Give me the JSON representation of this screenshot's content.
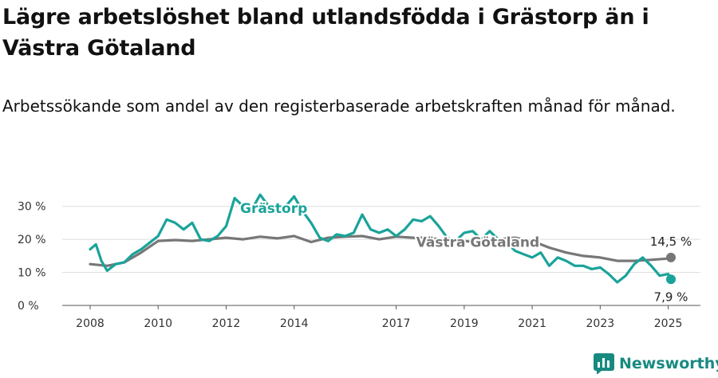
{
  "title": "Lägre arbetslöshet bland utlandsfödda i Grästorp än i Västra Götaland",
  "subtitle": "Arbetssökande som andel av den registerbaserade arbetskraften månad för månad.",
  "brand": {
    "name": "Newsworthy"
  },
  "chart_data": {
    "type": "line",
    "ylim": [
      0,
      35
    ],
    "xlim": [
      2007.5,
      2025.75
    ],
    "grid": true,
    "y_ticks": [
      {
        "value": 0,
        "label": "0 %"
      },
      {
        "value": 10,
        "label": "10 %"
      },
      {
        "value": 20,
        "label": "20 %"
      },
      {
        "value": 30,
        "label": "30 %"
      }
    ],
    "x_ticks": [
      {
        "value": 2008,
        "label": "2008"
      },
      {
        "value": 2010,
        "label": "2010"
      },
      {
        "value": 2012,
        "label": "2012"
      },
      {
        "value": 2014,
        "label": "2014"
      },
      {
        "value": 2017,
        "label": "2017"
      },
      {
        "value": 2019,
        "label": "2019"
      },
      {
        "value": 2021,
        "label": "2021"
      },
      {
        "value": 2023,
        "label": "2023"
      },
      {
        "value": 2025,
        "label": "2025"
      }
    ],
    "series": [
      {
        "name": "Västra Götaland",
        "color": "#777777",
        "end_label": "14,5 %",
        "points": [
          [
            2008.0,
            12.5
          ],
          [
            2008.5,
            12.0
          ],
          [
            2009.0,
            13.0
          ],
          [
            2009.5,
            16.0
          ],
          [
            2010.0,
            19.5
          ],
          [
            2010.5,
            19.8
          ],
          [
            2011.0,
            19.5
          ],
          [
            2011.5,
            20.0
          ],
          [
            2012.0,
            20.5
          ],
          [
            2012.5,
            20.0
          ],
          [
            2013.0,
            20.8
          ],
          [
            2013.5,
            20.3
          ],
          [
            2014.0,
            21.0
          ],
          [
            2014.5,
            19.2
          ],
          [
            2015.0,
            20.5
          ],
          [
            2015.5,
            20.8
          ],
          [
            2016.0,
            21.0
          ],
          [
            2016.5,
            20.0
          ],
          [
            2017.0,
            20.8
          ],
          [
            2017.5,
            20.5
          ],
          [
            2018.0,
            20.5
          ],
          [
            2018.5,
            19.5
          ],
          [
            2019.0,
            19.5
          ],
          [
            2019.5,
            19.0
          ],
          [
            2020.0,
            20.0
          ],
          [
            2020.5,
            20.5
          ],
          [
            2021.0,
            19.5
          ],
          [
            2021.5,
            17.5
          ],
          [
            2022.0,
            16.0
          ],
          [
            2022.5,
            15.0
          ],
          [
            2023.0,
            14.5
          ],
          [
            2023.5,
            13.5
          ],
          [
            2024.0,
            13.5
          ],
          [
            2024.5,
            13.8
          ],
          [
            2025.0,
            14.2
          ],
          [
            2025.08,
            14.5
          ]
        ]
      },
      {
        "name": "Grästorp",
        "color": "#1aa39a",
        "end_label": "7,9 %",
        "points": [
          [
            2008.0,
            17.0
          ],
          [
            2008.17,
            18.5
          ],
          [
            2008.33,
            13.5
          ],
          [
            2008.5,
            10.5
          ],
          [
            2008.75,
            12.5
          ],
          [
            2009.0,
            13.0
          ],
          [
            2009.25,
            15.5
          ],
          [
            2009.5,
            17.0
          ],
          [
            2009.75,
            19.0
          ],
          [
            2010.0,
            21.0
          ],
          [
            2010.25,
            26.0
          ],
          [
            2010.5,
            25.0
          ],
          [
            2010.75,
            23.0
          ],
          [
            2011.0,
            25.0
          ],
          [
            2011.25,
            20.0
          ],
          [
            2011.5,
            19.5
          ],
          [
            2011.75,
            21.0
          ],
          [
            2012.0,
            24.0
          ],
          [
            2012.25,
            32.5
          ],
          [
            2012.5,
            30.0
          ],
          [
            2012.75,
            29.0
          ],
          [
            2013.0,
            33.5
          ],
          [
            2013.25,
            30.0
          ],
          [
            2013.5,
            28.0
          ],
          [
            2013.75,
            30.0
          ],
          [
            2014.0,
            33.0
          ],
          [
            2014.25,
            28.5
          ],
          [
            2014.5,
            25.0
          ],
          [
            2014.75,
            20.5
          ],
          [
            2015.0,
            19.5
          ],
          [
            2015.25,
            21.5
          ],
          [
            2015.5,
            21.0
          ],
          [
            2015.75,
            22.0
          ],
          [
            2016.0,
            27.5
          ],
          [
            2016.25,
            23.0
          ],
          [
            2016.5,
            22.0
          ],
          [
            2016.75,
            23.0
          ],
          [
            2017.0,
            21.0
          ],
          [
            2017.25,
            23.0
          ],
          [
            2017.5,
            26.0
          ],
          [
            2017.75,
            25.5
          ],
          [
            2018.0,
            27.0
          ],
          [
            2018.25,
            24.0
          ],
          [
            2018.5,
            20.5
          ],
          [
            2018.75,
            19.5
          ],
          [
            2019.0,
            22.0
          ],
          [
            2019.25,
            22.5
          ],
          [
            2019.5,
            20.0
          ],
          [
            2019.75,
            22.5
          ],
          [
            2020.0,
            20.0
          ],
          [
            2020.25,
            19.0
          ],
          [
            2020.5,
            16.5
          ],
          [
            2020.75,
            15.5
          ],
          [
            2021.0,
            14.5
          ],
          [
            2021.25,
            16.0
          ],
          [
            2021.5,
            12.0
          ],
          [
            2021.75,
            14.5
          ],
          [
            2022.0,
            13.5
          ],
          [
            2022.25,
            12.0
          ],
          [
            2022.5,
            12.0
          ],
          [
            2022.75,
            11.0
          ],
          [
            2023.0,
            11.5
          ],
          [
            2023.25,
            9.5
          ],
          [
            2023.5,
            7.0
          ],
          [
            2023.75,
            9.0
          ],
          [
            2024.0,
            12.5
          ],
          [
            2024.25,
            14.5
          ],
          [
            2024.5,
            12.0
          ],
          [
            2024.75,
            9.0
          ],
          [
            2025.0,
            9.5
          ],
          [
            2025.08,
            7.9
          ]
        ]
      }
    ],
    "annotations": [
      {
        "text": "Grästorp",
        "series": "Grästorp",
        "x": 2013.4,
        "y": 28.0
      },
      {
        "text": "Västra Götaland",
        "series": "Västra Götaland",
        "x": 2019.4,
        "y": 17.8
      }
    ]
  }
}
